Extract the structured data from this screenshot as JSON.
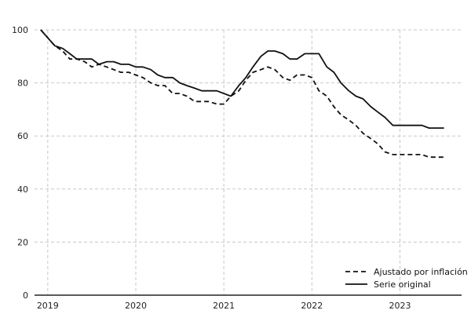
{
  "chart_data": {
    "type": "line",
    "title": "",
    "xlabel": "",
    "ylabel": "",
    "xlim": [
      2018.85,
      2023.7
    ],
    "ylim": [
      0,
      100
    ],
    "x_ticks": [
      2019,
      2020,
      2021,
      2022,
      2023
    ],
    "x_tick_labels": [
      "2019",
      "2020",
      "2021",
      "2022",
      "2023"
    ],
    "y_ticks": [
      0,
      20,
      40,
      60,
      80,
      100
    ],
    "y_tick_labels": [
      "0",
      "20",
      "40",
      "60",
      "80",
      "100"
    ],
    "grid": true,
    "legend_position": "bottom-right",
    "x": [
      2018.92,
      2019.0,
      2019.08,
      2019.17,
      2019.25,
      2019.33,
      2019.42,
      2019.5,
      2019.58,
      2019.67,
      2019.75,
      2019.83,
      2019.92,
      2020.0,
      2020.08,
      2020.17,
      2020.25,
      2020.33,
      2020.42,
      2020.5,
      2020.58,
      2020.67,
      2020.75,
      2020.83,
      2020.92,
      2021.0,
      2021.08,
      2021.17,
      2021.25,
      2021.33,
      2021.42,
      2021.5,
      2021.58,
      2021.67,
      2021.75,
      2021.83,
      2021.92,
      2022.0,
      2022.08,
      2022.17,
      2022.25,
      2022.33,
      2022.42,
      2022.5,
      2022.58,
      2022.67,
      2022.75,
      2022.83,
      2022.92,
      2023.0,
      2023.08,
      2023.17,
      2023.25,
      2023.33,
      2023.42,
      2023.5
    ],
    "series": [
      {
        "name": "Ajustado por inflación",
        "style": "dashed",
        "color": "#111111",
        "values": [
          100,
          97,
          94,
          92,
          89,
          89,
          88,
          86,
          87,
          86,
          85,
          84,
          84,
          83,
          82,
          80,
          79,
          79,
          76,
          76,
          75,
          73,
          73,
          73,
          72,
          72,
          75,
          77,
          81,
          84,
          85,
          86,
          85,
          82,
          81,
          83,
          83,
          82,
          77,
          75,
          71,
          68,
          66,
          64,
          61,
          59,
          57,
          54,
          53,
          53,
          53,
          53,
          53,
          52,
          52,
          52
        ]
      },
      {
        "name": "Serie original",
        "style": "solid",
        "color": "#111111",
        "values": [
          100,
          97,
          94,
          93,
          91,
          89,
          89,
          89,
          87,
          88,
          88,
          87,
          87,
          86,
          86,
          85,
          83,
          82,
          82,
          80,
          79,
          78,
          77,
          77,
          77,
          76,
          75,
          79,
          82,
          86,
          90,
          92,
          92,
          91,
          89,
          89,
          91,
          91,
          91,
          86,
          84,
          80,
          77,
          75,
          74,
          71,
          69,
          67,
          64,
          64,
          64,
          64,
          64,
          63,
          63,
          63
        ]
      }
    ]
  }
}
